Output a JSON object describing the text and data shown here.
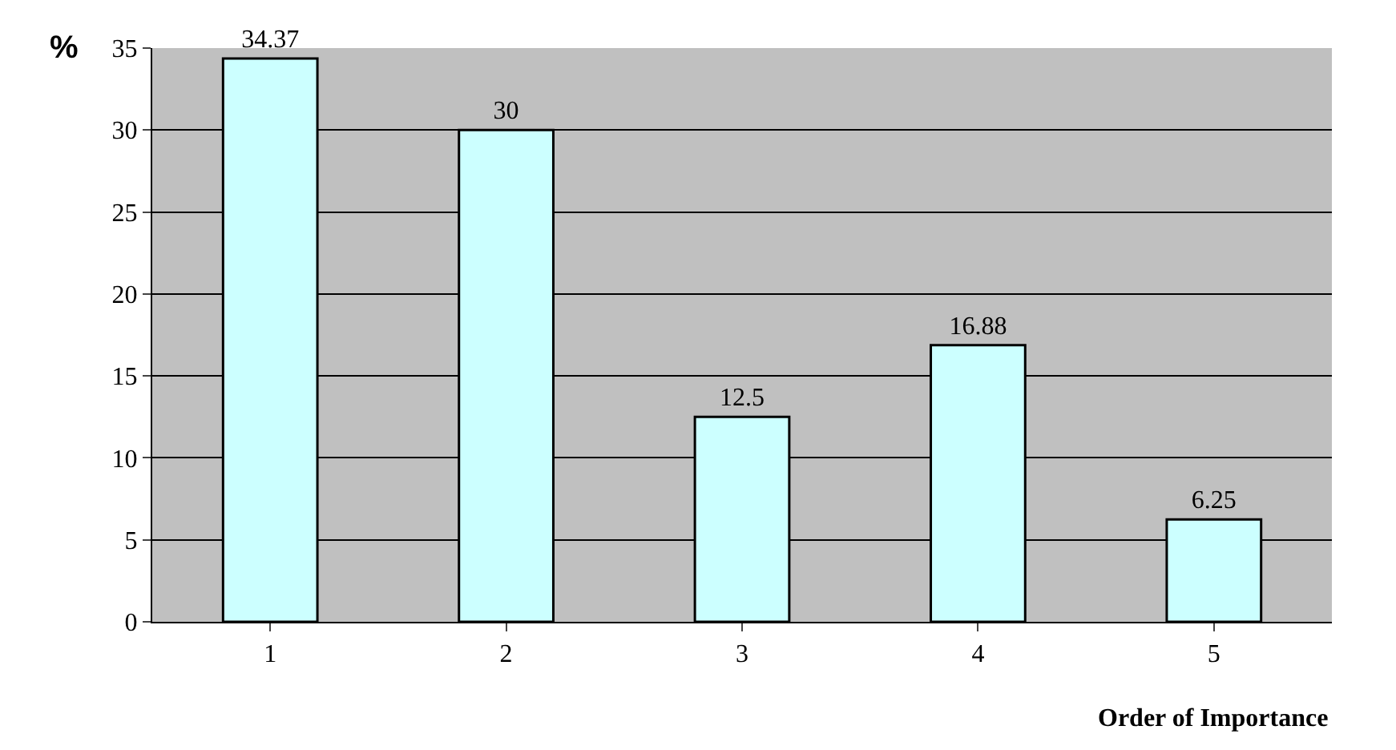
{
  "chart_data": {
    "type": "bar",
    "categories": [
      "1",
      "2",
      "3",
      "4",
      "5"
    ],
    "values": [
      34.37,
      30,
      12.5,
      16.88,
      6.25
    ],
    "color": "#ccffff",
    "xlabel": "Order of Importance",
    "ylabel": "%",
    "ylim": [
      0,
      35
    ],
    "yticks": [
      0,
      5,
      10,
      15,
      20,
      25,
      30,
      35
    ],
    "grid": "y",
    "data_labels": true,
    "legend": false
  }
}
